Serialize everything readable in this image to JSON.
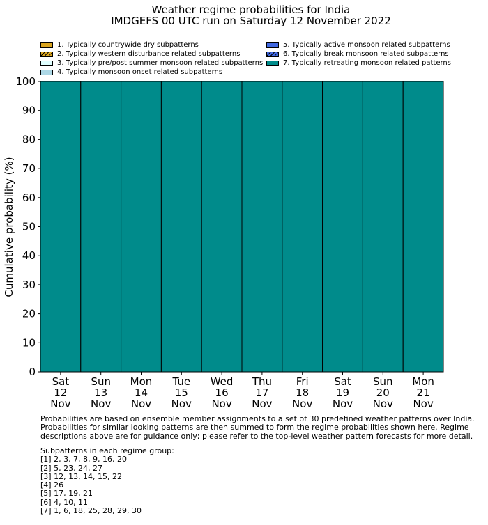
{
  "title": "Weather regime probabilities for India",
  "subtitle": "IMDGEFS 00 UTC run on Saturday 12 November 2022",
  "legend": [
    {
      "label": "1. Typically countrywide dry subpatterns",
      "color": "#DAA520",
      "hatch": false
    },
    {
      "label": "2. Typically western disturbance related subpatterns",
      "color": "#DAA520",
      "hatch": true
    },
    {
      "label": "3. Typically pre/post summer monsoon related subpatterns",
      "color": "#E0FFFF",
      "hatch": false
    },
    {
      "label": "4. Typically monsoon onset related subpatterns",
      "color": "#ADD8E6",
      "hatch": false
    },
    {
      "label": "5. Typically active monsoon related subpatterns",
      "color": "#4169E1",
      "hatch": false
    },
    {
      "label": "6. Typically break monsoon related subpatterns",
      "color": "#4169E1",
      "hatch": true
    },
    {
      "label": "7. Typically retreating monsoon related patterns",
      "color": "#008B8B",
      "hatch": false
    }
  ],
  "chart_data": {
    "type": "bar",
    "stacked": true,
    "ylabel": "Cumulative probability (%)",
    "ylim": [
      0,
      100
    ],
    "yticks": [
      0,
      10,
      20,
      30,
      40,
      50,
      60,
      70,
      80,
      90,
      100
    ],
    "categories": [
      [
        "Sat",
        "12",
        "Nov"
      ],
      [
        "Sun",
        "13",
        "Nov"
      ],
      [
        "Mon",
        "14",
        "Nov"
      ],
      [
        "Tue",
        "15",
        "Nov"
      ],
      [
        "Wed",
        "16",
        "Nov"
      ],
      [
        "Thu",
        "17",
        "Nov"
      ],
      [
        "Fri",
        "18",
        "Nov"
      ],
      [
        "Sat",
        "19",
        "Nov"
      ],
      [
        "Sun",
        "20",
        "Nov"
      ],
      [
        "Mon",
        "21",
        "Nov"
      ]
    ],
    "series": [
      {
        "name": "1. Typically countrywide dry subpatterns",
        "values": [
          0,
          0,
          0,
          0,
          0,
          0,
          0,
          0,
          0,
          0
        ]
      },
      {
        "name": "2. Typically western disturbance related subpatterns",
        "values": [
          0,
          0,
          0,
          0,
          0,
          0,
          0,
          0,
          0,
          0
        ]
      },
      {
        "name": "3. Typically pre/post summer monsoon related subpatterns",
        "values": [
          0,
          0,
          0,
          0,
          0,
          0,
          0,
          0,
          0,
          0
        ]
      },
      {
        "name": "4. Typically monsoon onset related subpatterns",
        "values": [
          0,
          0,
          0,
          0,
          0,
          0,
          0,
          0,
          0,
          0
        ]
      },
      {
        "name": "5. Typically active monsoon related subpatterns",
        "values": [
          0,
          0,
          0,
          0,
          0,
          0,
          0,
          0,
          0,
          0
        ]
      },
      {
        "name": "6. Typically break monsoon related subpatterns",
        "values": [
          0,
          0,
          0,
          0,
          0,
          0,
          0,
          0,
          0,
          0
        ]
      },
      {
        "name": "7. Typically retreating monsoon related patterns",
        "values": [
          100,
          100,
          100,
          100,
          100,
          100,
          100,
          100,
          100,
          100
        ]
      }
    ]
  },
  "notes": "Probabilities are based on ensemble member assignments to a set of 30 predefined weather patterns over India.\nProbabilities for similar looking patterns are then summed to form the regime probabilities shown here. Regime\ndescriptions above are for guidance only; please refer to the top-level weather pattern forecasts for more detail.",
  "subpatterns": "Subpatterns in each regime group:\n[1] 2, 3, 7, 8, 9, 16, 20\n[2] 5, 23, 24, 27\n[3] 12, 13, 14, 15, 22\n[4] 26\n[5] 17, 19, 21\n[6] 4, 10, 11\n[7] 1, 6, 18, 25, 28, 29, 30"
}
